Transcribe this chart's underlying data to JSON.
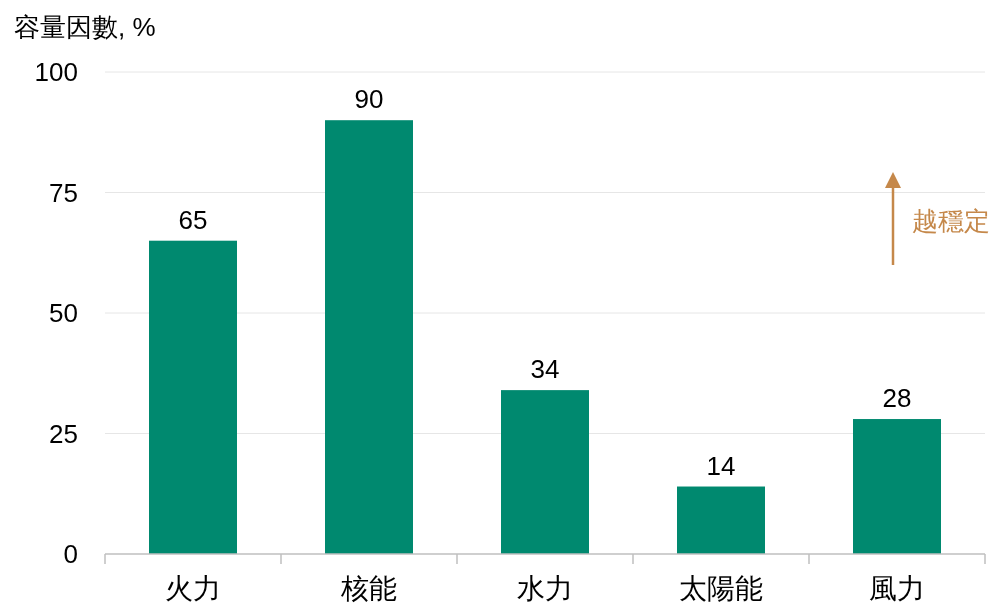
{
  "chart_data": {
    "type": "bar",
    "ylabel": "容量因數, %",
    "categories": [
      "火力",
      "核能",
      "水力",
      "太陽能",
      "風力"
    ],
    "values": [
      65,
      90,
      34,
      14,
      28
    ],
    "color": "#00896f",
    "ylim": [
      0,
      100
    ],
    "yticks": [
      0,
      25,
      50,
      75,
      100
    ],
    "grid": "y",
    "data_labels": true,
    "annotations": [
      "越穩定"
    ]
  }
}
